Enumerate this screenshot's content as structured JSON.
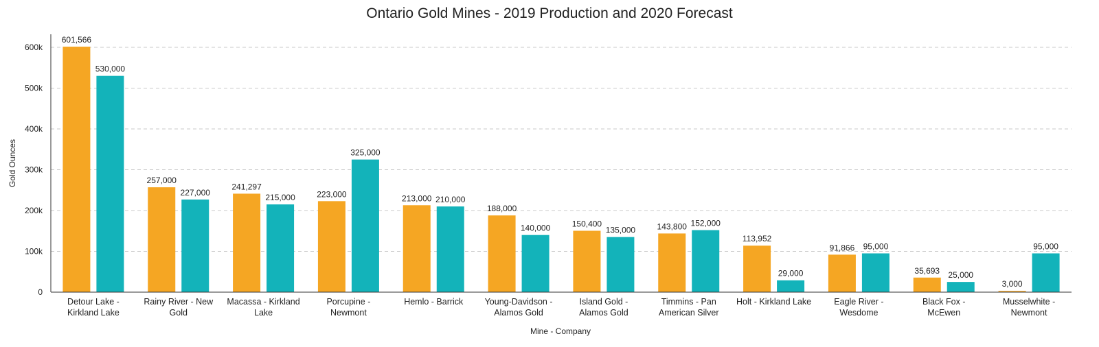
{
  "chart_data": {
    "type": "bar",
    "title": "Ontario Gold Mines - 2019 Production and 2020 Forecast",
    "xlabel": "Mine - Company",
    "ylabel": "Gold Ounces",
    "ylim": [
      0,
      600000
    ],
    "yticks": [
      0,
      100000,
      200000,
      300000,
      400000,
      500000,
      600000
    ],
    "ytick_labels": [
      "0",
      "100k",
      "200k",
      "300k",
      "400k",
      "500k",
      "600k"
    ],
    "grid": true,
    "categories": [
      [
        "Detour Lake -",
        "Kirkland Lake"
      ],
      [
        "Rainy River - New",
        "Gold"
      ],
      [
        "Macassa - Kirkland",
        "Lake"
      ],
      [
        "Porcupine -",
        "Newmont"
      ],
      [
        "Hemlo - Barrick"
      ],
      [
        "Young-Davidson -",
        "Alamos Gold"
      ],
      [
        "Island Gold -",
        "Alamos Gold"
      ],
      [
        "Timmins - Pan",
        "American Silver"
      ],
      [
        "Holt - Kirkland Lake"
      ],
      [
        "Eagle River -",
        "Wesdome"
      ],
      [
        "Black Fox -",
        "McEwen"
      ],
      [
        "Musselwhite -",
        "Newmont"
      ]
    ],
    "series": [
      {
        "color": "#F5A623",
        "values": [
          601566,
          257000,
          241297,
          223000,
          213000,
          188000,
          150400,
          143800,
          113952,
          91866,
          35693,
          3000
        ],
        "labels": [
          "601,566",
          "257,000",
          "241,297",
          "223,000",
          "213,000",
          "188,000",
          "150,400",
          "143,800",
          "113,952",
          "91,866",
          "35,693",
          "3,000"
        ]
      },
      {
        "color": "#13B3BA",
        "values": [
          530000,
          227000,
          215000,
          325000,
          210000,
          140000,
          135000,
          152000,
          29000,
          95000,
          25000,
          95000
        ],
        "labels": [
          "530,000",
          "227,000",
          "215,000",
          "325,000",
          "210,000",
          "140,000",
          "135,000",
          "152,000",
          "29,000",
          "95,000",
          "25,000",
          "95,000"
        ]
      }
    ]
  }
}
